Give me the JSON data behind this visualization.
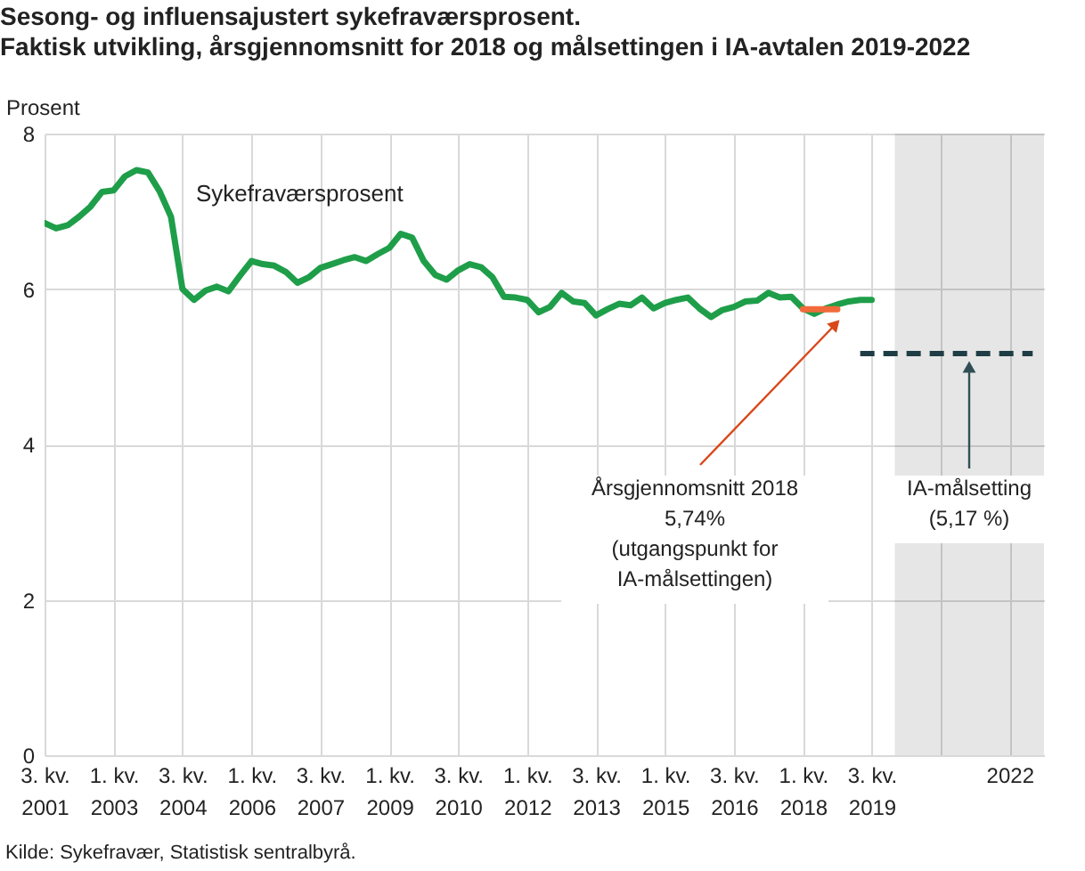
{
  "chart_data": {
    "type": "line",
    "title": "Sesong- og influensajustert sykefraværsprosent.",
    "subtitle": "Faktisk utvikling, årsgjennomsnitt for 2018 og målsettingen i IA-avtalen 2019-2022",
    "ylabel": "Prosent",
    "series": [
      {
        "name": "Sykefraværsprosent",
        "color": "#1f9e4a",
        "x": [
          "2001-07",
          "2001-10",
          "2002-01",
          "2002-04",
          "2002-07",
          "2002-10",
          "2003-01",
          "2003-04",
          "2003-07",
          "2003-10",
          "2004-01",
          "2004-04",
          "2004-07",
          "2004-10",
          "2005-01",
          "2005-04",
          "2005-07",
          "2005-10",
          "2006-01",
          "2006-04",
          "2006-07",
          "2006-10",
          "2007-01",
          "2007-04",
          "2007-07",
          "2007-10",
          "2008-01",
          "2008-04",
          "2008-07",
          "2008-10",
          "2009-01",
          "2009-04",
          "2009-07",
          "2009-10",
          "2010-01",
          "2010-04",
          "2010-07",
          "2010-10",
          "2011-01",
          "2011-04",
          "2011-07",
          "2011-10",
          "2012-01",
          "2012-04",
          "2012-07",
          "2012-10",
          "2013-01",
          "2013-04",
          "2013-07",
          "2013-10",
          "2014-01",
          "2014-04",
          "2014-07",
          "2014-10",
          "2015-01",
          "2015-04",
          "2015-07",
          "2015-10",
          "2016-01",
          "2016-04",
          "2016-07",
          "2016-10",
          "2017-01",
          "2017-04",
          "2017-07",
          "2017-10",
          "2018-01",
          "2018-04",
          "2018-07",
          "2018-10",
          "2019-01",
          "2019-04",
          "2019-07"
        ],
        "values": [
          6.85,
          6.78,
          6.82,
          6.93,
          7.06,
          7.25,
          7.27,
          7.45,
          7.53,
          7.5,
          7.26,
          6.93,
          6.0,
          5.86,
          5.98,
          6.03,
          5.97,
          6.17,
          6.36,
          6.32,
          6.3,
          6.22,
          6.08,
          6.15,
          6.27,
          6.32,
          6.37,
          6.41,
          6.36,
          6.45,
          6.53,
          6.71,
          6.66,
          6.36,
          6.18,
          6.12,
          6.24,
          6.32,
          6.28,
          6.15,
          5.9,
          5.89,
          5.86,
          5.7,
          5.77,
          5.95,
          5.84,
          5.82,
          5.66,
          5.74,
          5.81,
          5.79,
          5.89,
          5.75,
          5.82,
          5.86,
          5.89,
          5.75,
          5.64,
          5.73,
          5.77,
          5.84,
          5.85,
          5.95,
          5.89,
          5.9,
          5.75,
          5.68,
          5.75,
          5.8,
          5.84,
          5.86,
          5.86
        ]
      },
      {
        "color": "#f26a3b",
        "x": [
          "2018-01",
          "2018-10"
        ],
        "values": [
          5.74,
          5.74
        ]
      },
      {
        "color": "#1f3d45",
        "line_style": "dashed",
        "x": [
          "2019-04",
          "2023-01"
        ],
        "values": [
          5.17,
          5.17
        ]
      }
    ],
    "bands": [
      {
        "axis": "x",
        "from": "2020-01",
        "to": "2023-04",
        "color": "#e6e6e6"
      }
    ],
    "annotations": [
      "Årsgjennomsnitt 2018\n5,74%\n(utgangspunkt for\nIA-målsettingen)",
      "IA-målsetting\n(5,17 %)",
      "Kilde: Sykefravær, Statistisk sentralbyrå."
    ],
    "xlim": [
      "2001-07",
      "2023-04"
    ],
    "xticks": [
      {
        "value": "2001-07",
        "label": "3. kv.\n2001"
      },
      {
        "value": "2003-01",
        "label": "1. kv.\n2003"
      },
      {
        "value": "2004-07",
        "label": "3. kv.\n2004"
      },
      {
        "value": "2006-01",
        "label": "1. kv.\n2006"
      },
      {
        "value": "2007-07",
        "label": "3. kv.\n2007"
      },
      {
        "value": "2009-01",
        "label": "1. kv.\n2009"
      },
      {
        "value": "2010-07",
        "label": "3. kv.\n2010"
      },
      {
        "value": "2012-01",
        "label": "1. kv.\n2012"
      },
      {
        "value": "2013-07",
        "label": "3. kv.\n2013"
      },
      {
        "value": "2015-01",
        "label": "1. kv.\n2015"
      },
      {
        "value": "2016-07",
        "label": "3. kv.\n2016"
      },
      {
        "value": "2018-01",
        "label": "1. kv.\n2018"
      },
      {
        "value": "2019-07",
        "label": "3. kv.\n2019"
      },
      {
        "value": "2021-01",
        "label": null
      },
      {
        "value": "2022-07",
        "label": "2022"
      }
    ],
    "ylim": [
      0,
      8
    ],
    "yticks": [
      0,
      2,
      4,
      6,
      8
    ],
    "grid": true
  }
}
